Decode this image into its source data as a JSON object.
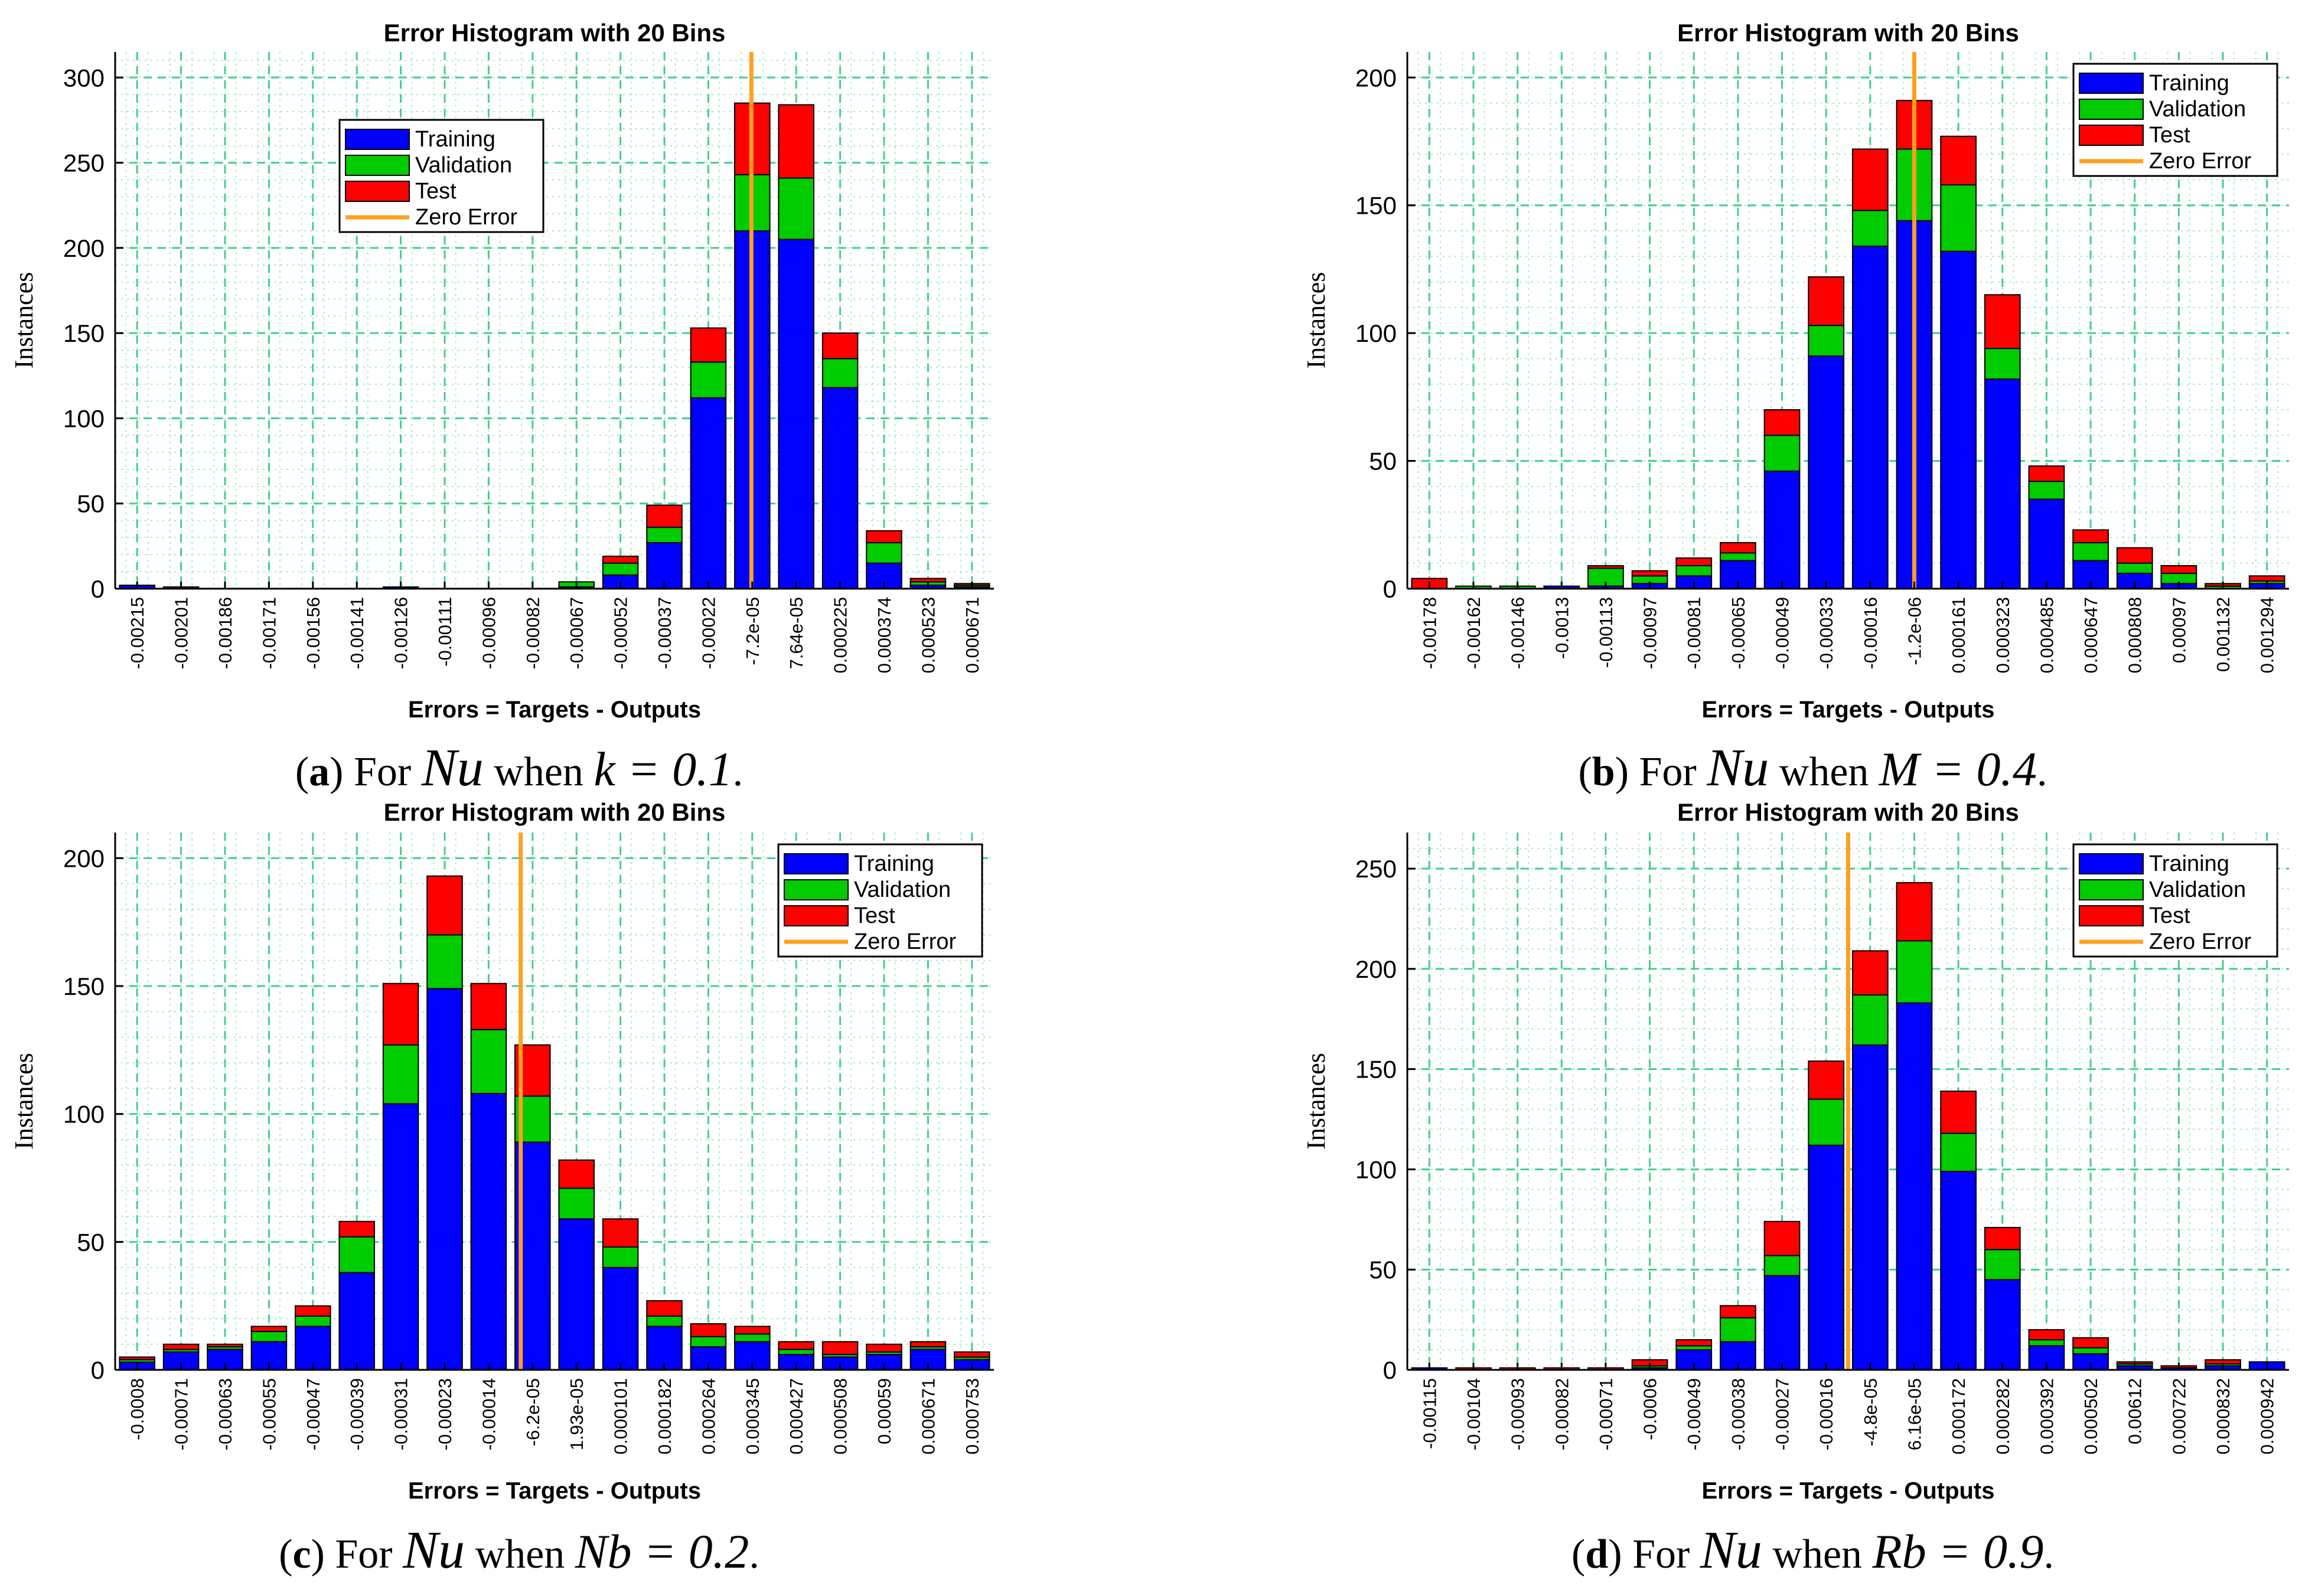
{
  "legend_labels": [
    "Training",
    "Validation",
    "Test",
    "Zero Error"
  ],
  "colors": {
    "training": "#0000ff",
    "validation": "#00cc00",
    "test": "#ff0000",
    "zero_error": "#ffa020",
    "grid": "#7fe0b0"
  },
  "chart_data": [
    {
      "type": "bar",
      "title": "Error Histogram with 20 Bins",
      "xlabel": "Errors = Targets - Outputs",
      "ylabel": "Instances",
      "ylim": [
        0,
        315
      ],
      "yticks": [
        0,
        50,
        100,
        150,
        200,
        250,
        300
      ],
      "categories": [
        "-0.00215",
        "-0.00201",
        "-0.00186",
        "-0.00171",
        "-0.00156",
        "-0.00141",
        "-0.00126",
        "-0.00111",
        "-0.00096",
        "-0.00082",
        "-0.00067",
        "-0.00052",
        "-0.00037",
        "-0.00022",
        "-7.2e-05",
        "7.64e-05",
        "0.000225",
        "0.000374",
        "0.000523",
        "0.000671"
      ],
      "series": [
        {
          "name": "Training",
          "values": [
            2,
            0,
            0,
            0,
            0,
            0,
            1,
            0,
            0,
            0,
            1,
            8,
            27,
            112,
            210,
            205,
            118,
            15,
            2,
            1
          ]
        },
        {
          "name": "Validation",
          "values": [
            0,
            0,
            0,
            0,
            0,
            0,
            0,
            0,
            0,
            0,
            3,
            7,
            9,
            21,
            33,
            36,
            17,
            12,
            2,
            1
          ]
        },
        {
          "name": "Test",
          "values": [
            0,
            1,
            0,
            0,
            0,
            0,
            0,
            0,
            0,
            0,
            0,
            4,
            13,
            20,
            42,
            43,
            15,
            7,
            2,
            1
          ]
        }
      ],
      "zero_error": 14.48,
      "legend": "top-left",
      "caption": {
        "label": "a",
        "prefix": "For",
        "var": "Nu",
        "when": "when",
        "cond": "k = 0.1",
        "suffix": "."
      }
    },
    {
      "type": "bar",
      "title": "Error Histogram with 20 Bins",
      "xlabel": "Errors = Targets - Outputs",
      "ylabel": "Instances",
      "ylim": [
        0,
        210
      ],
      "yticks": [
        0,
        50,
        100,
        150,
        200
      ],
      "categories": [
        "-0.00178",
        "-0.00162",
        "-0.00146",
        "-0.0013",
        "-0.00113",
        "-0.00097",
        "-0.00081",
        "-0.00065",
        "-0.00049",
        "-0.00033",
        "-0.00016",
        "-1.2e-06",
        "0.000161",
        "0.000323",
        "0.000485",
        "0.000647",
        "0.000808",
        "0.00097",
        "0.001132",
        "0.001294"
      ],
      "series": [
        {
          "name": "Training",
          "values": [
            0,
            0,
            0,
            1,
            1,
            2,
            5,
            11,
            46,
            91,
            134,
            144,
            132,
            82,
            35,
            11,
            6,
            2,
            0,
            2
          ]
        },
        {
          "name": "Validation",
          "values": [
            0,
            1,
            1,
            0,
            7,
            3,
            4,
            3,
            14,
            12,
            14,
            28,
            26,
            12,
            7,
            7,
            4,
            4,
            1,
            1
          ]
        },
        {
          "name": "Test",
          "values": [
            4,
            0,
            0,
            0,
            1,
            2,
            3,
            4,
            10,
            19,
            24,
            19,
            19,
            21,
            6,
            5,
            6,
            3,
            1,
            2
          ]
        }
      ],
      "zero_error": 11.5,
      "legend": "top-right",
      "caption": {
        "label": "b",
        "prefix": "For",
        "var": "Nu",
        "when": "when",
        "cond": "M = 0.4",
        "suffix": "."
      }
    },
    {
      "type": "bar",
      "title": "Error Histogram with 20 Bins",
      "xlabel": "Errors = Targets - Outputs",
      "ylabel": "Instances",
      "ylim": [
        0,
        210
      ],
      "yticks": [
        0,
        50,
        100,
        150,
        200
      ],
      "categories": [
        "-0.0008",
        "-0.00071",
        "-0.00063",
        "-0.00055",
        "-0.00047",
        "-0.00039",
        "-0.00031",
        "-0.00023",
        "-0.00014",
        "-6.2e-05",
        "1.93e-05",
        "0.000101",
        "0.000182",
        "0.000264",
        "0.000345",
        "0.000427",
        "0.000508",
        "0.00059",
        "0.000671",
        "0.000753"
      ],
      "series": [
        {
          "name": "Training",
          "values": [
            3,
            7,
            8,
            11,
            17,
            38,
            104,
            149,
            108,
            89,
            59,
            40,
            17,
            9,
            11,
            6,
            5,
            6,
            8,
            4
          ]
        },
        {
          "name": "Validation",
          "values": [
            1,
            1,
            1,
            4,
            4,
            14,
            23,
            21,
            25,
            18,
            12,
            8,
            4,
            4,
            3,
            2,
            1,
            1,
            1,
            1
          ]
        },
        {
          "name": "Test",
          "values": [
            1,
            2,
            1,
            2,
            4,
            6,
            24,
            23,
            18,
            20,
            11,
            11,
            6,
            5,
            3,
            3,
            5,
            3,
            2,
            2
          ]
        }
      ],
      "zero_error": 9.23,
      "legend": "top-right",
      "caption": {
        "label": "c",
        "prefix": "For",
        "var": "Nu",
        "when": "when",
        "cond": "Nb = 0.2",
        "suffix": "."
      }
    },
    {
      "type": "bar",
      "title": "Error Histogram with 20 Bins",
      "xlabel": "Errors = Targets - Outputs",
      "ylabel": "Instances",
      "ylim": [
        0,
        268
      ],
      "yticks": [
        0,
        50,
        100,
        150,
        200,
        250
      ],
      "categories": [
        "-0.00115",
        "-0.00104",
        "-0.00093",
        "-0.00082",
        "-0.00071",
        "-0.0006",
        "-0.00049",
        "-0.00038",
        "-0.00027",
        "-0.00016",
        "-4.8e-05",
        "6.16e-05",
        "0.000172",
        "0.000282",
        "0.000392",
        "0.000502",
        "0.00612",
        "0.000722",
        "0.000832",
        "0.000942"
      ],
      "series": [
        {
          "name": "Training",
          "values": [
            1,
            0,
            0,
            0,
            0,
            1,
            10,
            14,
            47,
            112,
            162,
            183,
            99,
            45,
            12,
            8,
            2,
            1,
            2,
            4
          ]
        },
        {
          "name": "Validation",
          "values": [
            0,
            0,
            0,
            0,
            0,
            1,
            2,
            12,
            10,
            23,
            25,
            31,
            19,
            15,
            3,
            3,
            1,
            0,
            1,
            0
          ]
        },
        {
          "name": "Test",
          "values": [
            0,
            1,
            1,
            1,
            1,
            3,
            3,
            6,
            17,
            19,
            22,
            29,
            21,
            11,
            5,
            5,
            1,
            1,
            2,
            0
          ]
        }
      ],
      "zero_error": 10.0,
      "legend": "top-right",
      "caption": {
        "label": "d",
        "prefix": "For",
        "var": "Nu",
        "when": "when",
        "cond": "Rb = 0.9",
        "suffix": "."
      }
    }
  ]
}
